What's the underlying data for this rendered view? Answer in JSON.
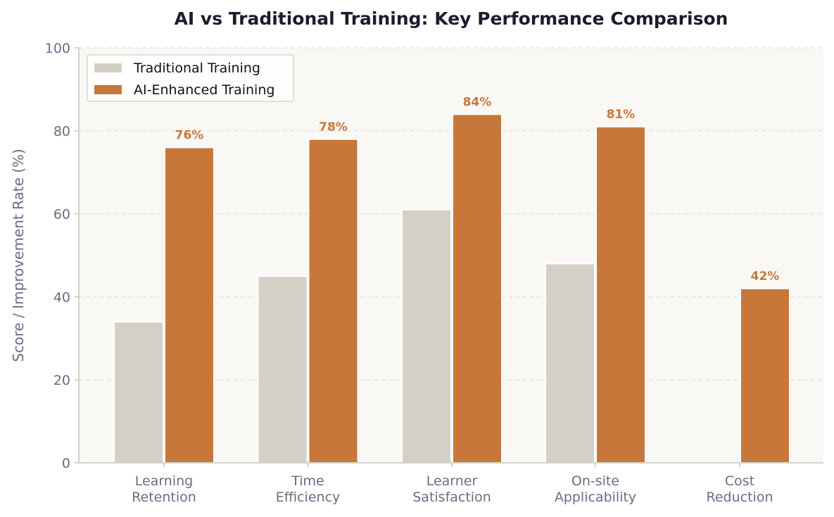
{
  "chart_data": {
    "type": "bar",
    "title": "AI vs Traditional Training: Key Performance Comparison",
    "xlabel": "",
    "ylabel": "Score / Improvement Rate (%)",
    "ylim": [
      0,
      100
    ],
    "yticks": [
      0,
      20,
      40,
      60,
      80,
      100
    ],
    "grid": true,
    "legend_position": "top-left",
    "categories": [
      [
        "Learning",
        "Retention"
      ],
      [
        "Time",
        "Efficiency"
      ],
      [
        "Learner",
        "Satisfaction"
      ],
      [
        "On-site",
        "Applicability"
      ],
      [
        "Cost",
        "Reduction"
      ]
    ],
    "series": [
      {
        "name": "Traditional Training",
        "color": "#d4d0c5",
        "values": [
          34,
          45,
          61,
          48,
          null
        ],
        "show_labels": false
      },
      {
        "name": "AI-Enhanced Training",
        "color": "#c8773a",
        "values": [
          76,
          78,
          84,
          81,
          42
        ],
        "show_labels": true,
        "label_suffix": "%",
        "label_color": "#c8773a"
      }
    ],
    "colors": {
      "plot_background": "#f9f8f5",
      "grid": "#e4e1d8",
      "axis": "#c8c5bc",
      "tick_text": "#6b6b85",
      "title_text": "#1c1c2e"
    }
  }
}
